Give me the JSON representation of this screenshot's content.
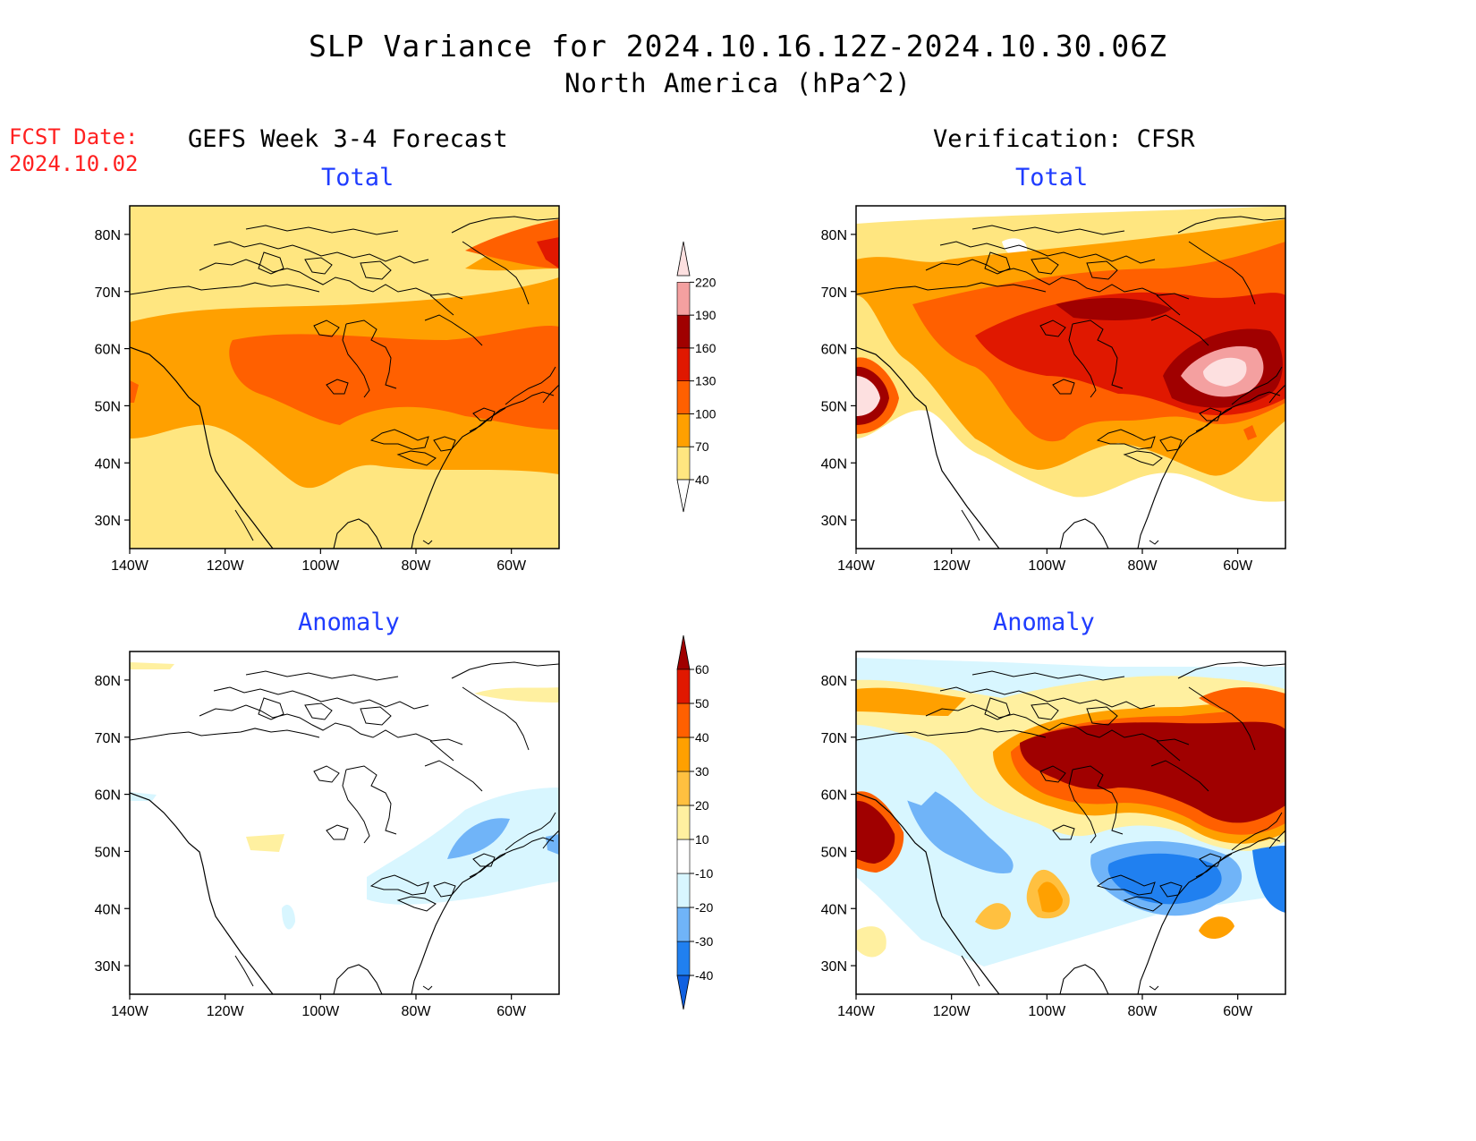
{
  "title": "SLP Variance for 2024.10.16.12Z-2024.10.30.06Z",
  "subtitle": "North America (hPa^2)",
  "fcst_date_label": "FCST Date:",
  "fcst_date_value": "2024.10.02",
  "columns": {
    "left": "GEFS Week 3-4 Forecast",
    "right": "Verification: CFSR"
  },
  "panels": {
    "forecast_total": {
      "title": "Total"
    },
    "verification_total": {
      "title": "Total"
    },
    "forecast_anomaly": {
      "title": "Anomaly"
    },
    "verification_anomaly": {
      "title": "Anomaly"
    }
  },
  "axes": {
    "lat_labels": [
      "80N",
      "70N",
      "60N",
      "50N",
      "40N",
      "30N"
    ],
    "lat_values": [
      80,
      70,
      60,
      50,
      40,
      30
    ],
    "lon_labels": [
      "140W",
      "120W",
      "100W",
      "80W",
      "60W"
    ],
    "lon_values": [
      -140,
      -120,
      -100,
      -80,
      -60
    ],
    "lat_range": [
      25,
      85
    ],
    "lon_range": [
      -140,
      -50
    ]
  },
  "colorbar_total": {
    "levels": [
      "40",
      "70",
      "100",
      "130",
      "160",
      "190",
      "220"
    ],
    "colors": [
      "#ffe680",
      "#ffa000",
      "#ff6000",
      "#e01800",
      "#a00000",
      "#f4a0a0",
      "#fde0e0"
    ]
  },
  "colorbar_anomaly": {
    "levels": [
      "-40",
      "-30",
      "-20",
      "-10",
      "10",
      "20",
      "30",
      "40",
      "50",
      "60"
    ],
    "colors": [
      "#1060e0",
      "#2080f0",
      "#70b4f8",
      "#d8f6ff",
      "#ffffff",
      "#fff0a0",
      "#ffc040",
      "#ffa000",
      "#ff6000",
      "#e01800",
      "#a00000"
    ]
  }
}
